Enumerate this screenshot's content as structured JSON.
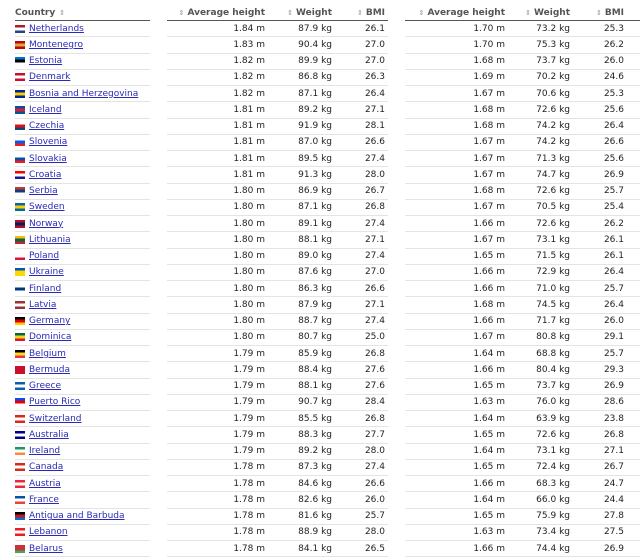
{
  "headers": {
    "country": "Country",
    "height": "Average height",
    "weight": "Weight",
    "bmi": "BMI"
  },
  "rows": [
    {
      "country": "Netherlands",
      "flag": [
        "#ae1c28",
        "#ffffff",
        "#21468b"
      ],
      "men": [
        "1.84 m",
        "87.9 kg",
        "26.1"
      ],
      "women": [
        "1.70 m",
        "73.2 kg",
        "25.3"
      ]
    },
    {
      "country": "Montenegro",
      "flag": [
        "#c40308",
        "#d3ae3b",
        "#c40308"
      ],
      "men": [
        "1.83 m",
        "90.4 kg",
        "27.0"
      ],
      "women": [
        "1.70 m",
        "75.3 kg",
        "26.2"
      ]
    },
    {
      "country": "Estonia",
      "flag": [
        "#0072ce",
        "#000000",
        "#ffffff"
      ],
      "men": [
        "1.82 m",
        "89.9 kg",
        "27.0"
      ],
      "women": [
        "1.68 m",
        "73.7 kg",
        "26.0"
      ]
    },
    {
      "country": "Denmark",
      "flag": [
        "#c8102e",
        "#ffffff",
        "#c8102e"
      ],
      "men": [
        "1.82 m",
        "86.8 kg",
        "26.3"
      ],
      "women": [
        "1.69 m",
        "70.2 kg",
        "24.6"
      ]
    },
    {
      "country": "Bosnia and Herzegovina",
      "flag": [
        "#002395",
        "#fecb00",
        "#002395"
      ],
      "men": [
        "1.82 m",
        "87.1 kg",
        "26.4"
      ],
      "women": [
        "1.67 m",
        "70.6 kg",
        "25.3"
      ]
    },
    {
      "country": "Iceland",
      "flag": [
        "#02529c",
        "#dc1e35",
        "#02529c"
      ],
      "men": [
        "1.81 m",
        "89.2 kg",
        "27.1"
      ],
      "women": [
        "1.68 m",
        "72.6 kg",
        "25.6"
      ]
    },
    {
      "country": "Czechia",
      "flag": [
        "#ffffff",
        "#d7141a",
        "#11457e"
      ],
      "men": [
        "1.81 m",
        "91.9 kg",
        "28.1"
      ],
      "women": [
        "1.68 m",
        "74.2 kg",
        "26.4"
      ]
    },
    {
      "country": "Slovenia",
      "flag": [
        "#ffffff",
        "#005ce5",
        "#ed1c24"
      ],
      "men": [
        "1.81 m",
        "87.0 kg",
        "26.6"
      ],
      "women": [
        "1.67 m",
        "74.2 kg",
        "26.6"
      ]
    },
    {
      "country": "Slovakia",
      "flag": [
        "#ffffff",
        "#0b4ea2",
        "#ee1c25"
      ],
      "men": [
        "1.81 m",
        "89.5 kg",
        "27.4"
      ],
      "women": [
        "1.67 m",
        "71.3 kg",
        "25.6"
      ]
    },
    {
      "country": "Croatia",
      "flag": [
        "#ff0000",
        "#ffffff",
        "#171796"
      ],
      "men": [
        "1.81 m",
        "91.3 kg",
        "28.0"
      ],
      "women": [
        "1.67 m",
        "74.7 kg",
        "26.9"
      ]
    },
    {
      "country": "Serbia",
      "flag": [
        "#c6363c",
        "#0c4076",
        "#ffffff"
      ],
      "men": [
        "1.80 m",
        "86.9 kg",
        "26.7"
      ],
      "women": [
        "1.68 m",
        "72.6 kg",
        "25.7"
      ]
    },
    {
      "country": "Sweden",
      "flag": [
        "#006aa7",
        "#fecc00",
        "#006aa7"
      ],
      "men": [
        "1.80 m",
        "87.1 kg",
        "26.8"
      ],
      "women": [
        "1.67 m",
        "70.5 kg",
        "25.4"
      ]
    },
    {
      "country": "Norway",
      "flag": [
        "#ba0c2f",
        "#00205b",
        "#ba0c2f"
      ],
      "men": [
        "1.80 m",
        "89.1 kg",
        "27.4"
      ],
      "women": [
        "1.66 m",
        "72.6 kg",
        "26.2"
      ]
    },
    {
      "country": "Lithuania",
      "flag": [
        "#fdb913",
        "#006a44",
        "#c1272d"
      ],
      "men": [
        "1.80 m",
        "88.1 kg",
        "27.1"
      ],
      "women": [
        "1.67 m",
        "73.1 kg",
        "26.1"
      ]
    },
    {
      "country": "Poland",
      "flag": [
        "#ffffff",
        "#ffffff",
        "#dc143c"
      ],
      "men": [
        "1.80 m",
        "89.0 kg",
        "27.4"
      ],
      "women": [
        "1.65 m",
        "71.5 kg",
        "26.1"
      ]
    },
    {
      "country": "Ukraine",
      "flag": [
        "#0057b7",
        "#ffd700",
        "#ffd700"
      ],
      "men": [
        "1.80 m",
        "87.6 kg",
        "27.0"
      ],
      "women": [
        "1.66 m",
        "72.9 kg",
        "26.4"
      ]
    },
    {
      "country": "Finland",
      "flag": [
        "#ffffff",
        "#003580",
        "#ffffff"
      ],
      "men": [
        "1.80 m",
        "86.3 kg",
        "26.6"
      ],
      "women": [
        "1.66 m",
        "71.0 kg",
        "25.7"
      ]
    },
    {
      "country": "Latvia",
      "flag": [
        "#9e3039",
        "#ffffff",
        "#9e3039"
      ],
      "men": [
        "1.80 m",
        "87.9 kg",
        "27.1"
      ],
      "women": [
        "1.68 m",
        "74.5 kg",
        "26.4"
      ]
    },
    {
      "country": "Germany",
      "flag": [
        "#000000",
        "#dd0000",
        "#ffce00"
      ],
      "men": [
        "1.80 m",
        "88.7 kg",
        "27.4"
      ],
      "women": [
        "1.66 m",
        "71.7 kg",
        "26.0"
      ]
    },
    {
      "country": "Dominica",
      "flag": [
        "#006b3f",
        "#fcd116",
        "#d41c30"
      ],
      "men": [
        "1.80 m",
        "80.7 kg",
        "25.0"
      ],
      "women": [
        "1.67 m",
        "80.8 kg",
        "29.1"
      ]
    },
    {
      "country": "Belgium",
      "flag": [
        "#000000",
        "#fdda24",
        "#ef3340"
      ],
      "men": [
        "1.79 m",
        "85.9 kg",
        "26.8"
      ],
      "women": [
        "1.64 m",
        "68.8 kg",
        "25.7"
      ]
    },
    {
      "country": "Bermuda",
      "flag": [
        "#c8102e",
        "#c8102e",
        "#c8102e"
      ],
      "men": [
        "1.79 m",
        "88.4 kg",
        "27.6"
      ],
      "women": [
        "1.66 m",
        "80.4 kg",
        "29.3"
      ]
    },
    {
      "country": "Greece",
      "flag": [
        "#0d5eaf",
        "#ffffff",
        "#0d5eaf"
      ],
      "men": [
        "1.79 m",
        "88.1 kg",
        "27.6"
      ],
      "women": [
        "1.65 m",
        "73.7 kg",
        "26.9"
      ]
    },
    {
      "country": "Puerto Rico",
      "flag": [
        "#0050f0",
        "#ed0000",
        "#ffffff"
      ],
      "men": [
        "1.79 m",
        "90.7 kg",
        "28.4"
      ],
      "women": [
        "1.63 m",
        "76.0 kg",
        "28.6"
      ]
    },
    {
      "country": "Switzerland",
      "flag": [
        "#da291c",
        "#ffffff",
        "#da291c"
      ],
      "men": [
        "1.79 m",
        "85.5 kg",
        "26.8"
      ],
      "women": [
        "1.64 m",
        "63.9 kg",
        "23.8"
      ]
    },
    {
      "country": "Australia",
      "flag": [
        "#00008b",
        "#ffffff",
        "#00008b"
      ],
      "men": [
        "1.79 m",
        "88.3 kg",
        "27.7"
      ],
      "women": [
        "1.65 m",
        "72.6 kg",
        "26.8"
      ]
    },
    {
      "country": "Ireland",
      "flag": [
        "#169b62",
        "#ffffff",
        "#ff883e"
      ],
      "men": [
        "1.79 m",
        "89.2 kg",
        "28.0"
      ],
      "women": [
        "1.64 m",
        "73.1 kg",
        "27.1"
      ]
    },
    {
      "country": "Canada",
      "flag": [
        "#d52b1e",
        "#ffffff",
        "#d52b1e"
      ],
      "men": [
        "1.78 m",
        "87.3 kg",
        "27.4"
      ],
      "women": [
        "1.65 m",
        "72.4 kg",
        "26.7"
      ]
    },
    {
      "country": "Austria",
      "flag": [
        "#ed2939",
        "#ffffff",
        "#ed2939"
      ],
      "men": [
        "1.78 m",
        "84.6 kg",
        "26.6"
      ],
      "women": [
        "1.66 m",
        "68.3 kg",
        "24.7"
      ]
    },
    {
      "country": "France",
      "flag": [
        "#0055a4",
        "#ffffff",
        "#ef4135"
      ],
      "men": [
        "1.78 m",
        "82.6 kg",
        "26.0"
      ],
      "women": [
        "1.64 m",
        "66.0 kg",
        "24.4"
      ]
    },
    {
      "country": "Antigua and Barbuda",
      "flag": [
        "#000000",
        "#ce1126",
        "#0072c6"
      ],
      "men": [
        "1.78 m",
        "81.6 kg",
        "25.7"
      ],
      "women": [
        "1.65 m",
        "75.9 kg",
        "27.8"
      ]
    },
    {
      "country": "Lebanon",
      "flag": [
        "#ed1c24",
        "#ffffff",
        "#ed1c24"
      ],
      "men": [
        "1.78 m",
        "88.9 kg",
        "28.0"
      ],
      "women": [
        "1.63 m",
        "73.4 kg",
        "27.5"
      ]
    },
    {
      "country": "Belarus",
      "flag": [
        "#c8313e",
        "#c8313e",
        "#4aa657"
      ],
      "men": [
        "1.78 m",
        "84.1 kg",
        "26.5"
      ],
      "women": [
        "1.66 m",
        "74.4 kg",
        "26.9"
      ]
    }
  ]
}
